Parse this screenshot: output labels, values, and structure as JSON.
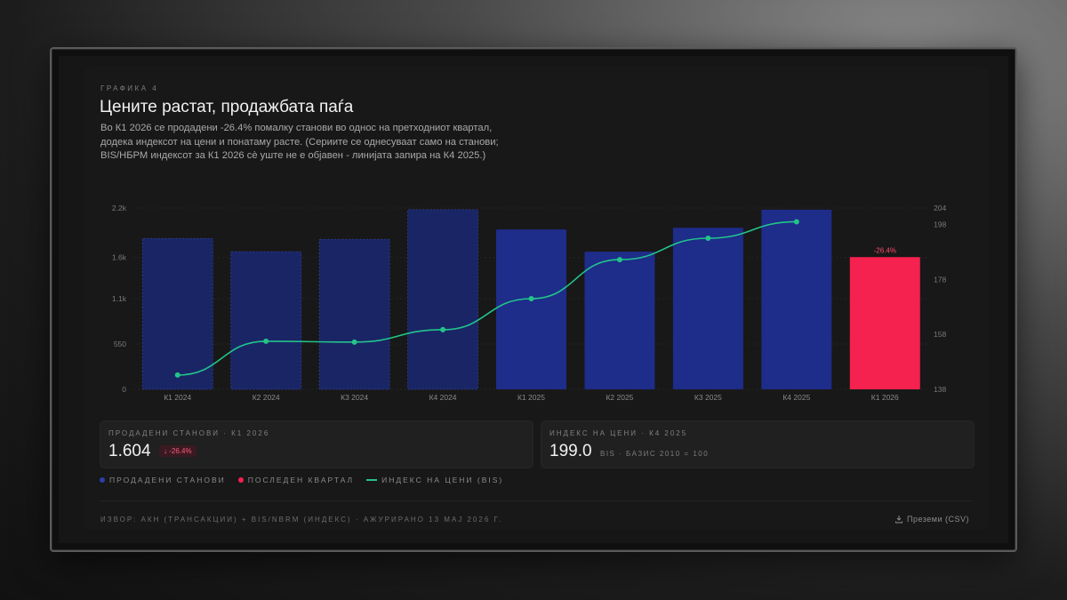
{
  "header": {
    "eyebrow": "ГРАФИКА 4",
    "title": "Цените растат, продажбата паѓа",
    "description": "Во К1 2026 се продадени -26.4% помалку станови во однос на претходниот квартал, додека индексот на цени и понатаму расте. (Сериите се однесуваат само на станови; BIS/НБРМ индексот за К1 2026 сè уште не е објавен - линијата запира на К4 2025.)"
  },
  "chart_data": {
    "type": "bar",
    "categories": [
      "К1 2024",
      "К2 2024",
      "К3 2024",
      "К4 2024",
      "К1 2025",
      "К2 2025",
      "К3 2025",
      "К4 2025",
      "К1 2026"
    ],
    "series": [
      {
        "name": "ПРОДАДЕНИ СТАНОВИ",
        "type": "bar",
        "axis": "left",
        "values": [
          1830,
          1670,
          1820,
          2180,
          1940,
          1670,
          1960,
          2180,
          1604
        ]
      },
      {
        "name": "ИНДЕКС НА ЦЕНИ (BIS)",
        "type": "line",
        "axis": "right",
        "values": [
          143.2,
          155.5,
          155.2,
          159.7,
          171.0,
          185.2,
          193.0,
          199.0,
          null
        ]
      }
    ],
    "y_left": {
      "ticks": [
        "0",
        "550",
        "1.1k",
        "1.6k",
        "2.2k"
      ],
      "tick_values": [
        0,
        550,
        1100,
        1600,
        2200
      ],
      "ylim": [
        0,
        2200
      ]
    },
    "y_right": {
      "ticks": [
        "138",
        "158",
        "178",
        "198",
        "204"
      ],
      "tick_values": [
        138,
        158,
        178,
        198,
        204
      ],
      "ylim": [
        138,
        204
      ]
    },
    "dashed_bars": [
      0,
      1,
      2,
      3
    ],
    "highlight_index": 8,
    "highlight_label": "-26.4%",
    "grid": true,
    "colors": {
      "bar": "#1e2c8a",
      "bar_dim": "#1a2566",
      "highlight": "#f5214f",
      "line": "#22c48a"
    }
  },
  "stats": [
    {
      "label": "ПРОДАДЕНИ СТАНОВИ · К1 2026",
      "value": "1.604",
      "badge": "↓ -26.4%"
    },
    {
      "label": "ИНДЕКС НА ЦЕНИ · К4 2025",
      "value": "199.0",
      "unit": "BIS · БАЗИС 2010 = 100"
    }
  ],
  "legend": [
    {
      "label": "ПРОДАДЕНИ СТАНОВИ",
      "color": "#2d3fa8"
    },
    {
      "label": "ПОСЛЕДЕН КВАРТАЛ",
      "color": "#f5214f"
    },
    {
      "label": "ИНДЕКС НА ЦЕНИ (BIS)",
      "color": "#22c48a"
    }
  ],
  "footer": {
    "source": "ИЗВОР: АКН (ТРАНСАКЦИИ) + BIS/NBRM (ИНДЕКС)   ·   АЖУРИРАНО 13 МАЈ 2026 Г.",
    "download_label": "Преземи (CSV)"
  }
}
